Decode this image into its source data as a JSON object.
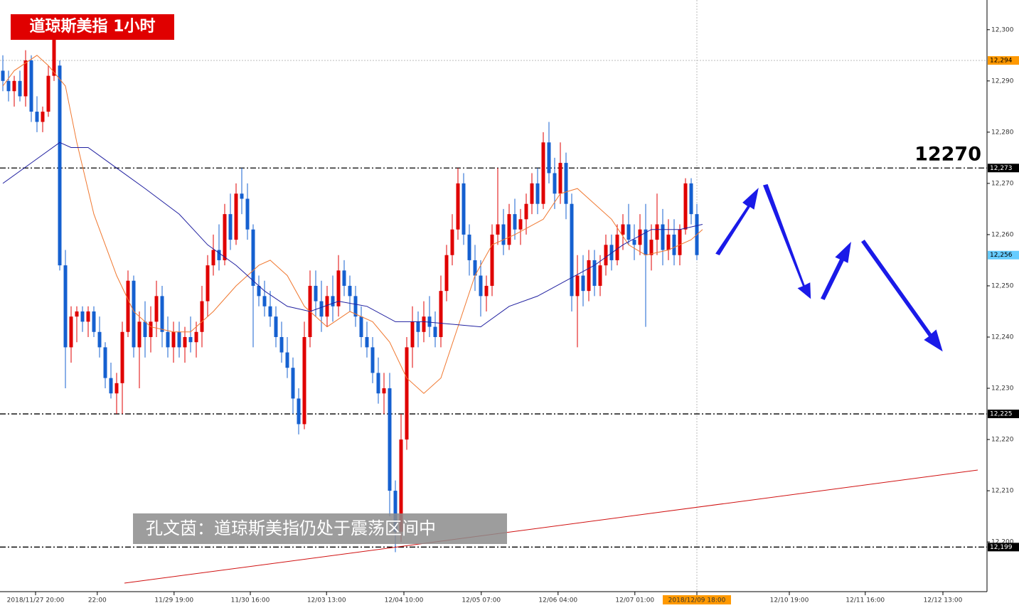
{
  "chart_data": {
    "type": "candlestick",
    "title": "道琼斯美指 1小时",
    "annotations": [
      "12270",
      "孔文茵：道琼斯美指仍处于震荡区间中"
    ],
    "up_color": "#e00000",
    "down_color": "#1560d0",
    "series": [
      {
        "values": [
          [
            12292,
            12295,
            12288,
            12290
          ],
          [
            12290,
            12292,
            12286,
            12288
          ],
          [
            12288,
            12291,
            12285,
            12290
          ],
          [
            12290,
            12292,
            12286,
            12287
          ],
          [
            12287,
            12296,
            12285,
            12294
          ],
          [
            12294,
            12295,
            12282,
            12284
          ],
          [
            12284,
            12287,
            12280,
            12282
          ],
          [
            12282,
            12285,
            12280,
            12284
          ],
          [
            12284,
            12293,
            12283,
            12291
          ],
          [
            12291,
            12302,
            12290,
            12300
          ],
          [
            12293,
            12294,
            12253,
            12254
          ],
          [
            12254,
            12257,
            12230,
            12238
          ],
          [
            12238,
            12246,
            12235,
            12244
          ],
          [
            12244,
            12246,
            12239,
            12245
          ],
          [
            12245,
            12246,
            12241,
            12243
          ],
          [
            12243,
            12246,
            12240,
            12245
          ],
          [
            12245,
            12246,
            12240,
            12241
          ],
          [
            12241,
            12244,
            12236,
            12238
          ],
          [
            12238,
            12239,
            12230,
            12232
          ],
          [
            12232,
            12235,
            12228,
            12229
          ],
          [
            12229,
            12233,
            12225,
            12231
          ],
          [
            12231,
            12243,
            12225,
            12241
          ],
          [
            12241,
            12253,
            12240,
            12251
          ],
          [
            12251,
            12252,
            12236,
            12238
          ],
          [
            12238,
            12245,
            12230,
            12243
          ],
          [
            12243,
            12247,
            12236,
            12240
          ],
          [
            12240,
            12246,
            12237,
            12243
          ],
          [
            12243,
            12251,
            12240,
            12248
          ],
          [
            12248,
            12250,
            12238,
            12241
          ],
          [
            12241,
            12244,
            12236,
            12238
          ],
          [
            12238,
            12243,
            12235,
            12241
          ],
          [
            12241,
            12243,
            12236,
            12238
          ],
          [
            12238,
            12242,
            12235,
            12240
          ],
          [
            12240,
            12244,
            12237,
            12239
          ],
          [
            12239,
            12243,
            12236,
            12241
          ],
          [
            12241,
            12250,
            12238,
            12247
          ],
          [
            12247,
            12256,
            12244,
            12254
          ],
          [
            12254,
            12260,
            12252,
            12257
          ],
          [
            12257,
            12262,
            12253,
            12255
          ],
          [
            12255,
            12266,
            12254,
            12264
          ],
          [
            12264,
            12268,
            12257,
            12259
          ],
          [
            12259,
            12270,
            12258,
            12268
          ],
          [
            12268,
            12273,
            12264,
            12267
          ],
          [
            12267,
            12270,
            12259,
            12261
          ],
          [
            12261,
            12262,
            12238,
            12250
          ],
          [
            12250,
            12252,
            12246,
            12248
          ],
          [
            12248,
            12251,
            12244,
            12246
          ],
          [
            12246,
            12249,
            12242,
            12244
          ],
          [
            12244,
            12246,
            12238,
            12240
          ],
          [
            12240,
            12243,
            12235,
            12237
          ],
          [
            12237,
            12240,
            12232,
            12234
          ],
          [
            12234,
            12236,
            12225,
            12228
          ],
          [
            12228,
            12230,
            12221,
            12223
          ],
          [
            12223,
            12243,
            12222,
            12240
          ],
          [
            12240,
            12253,
            12238,
            12250
          ],
          [
            12250,
            12253,
            12244,
            12247
          ],
          [
            12247,
            12251,
            12241,
            12244
          ],
          [
            12244,
            12250,
            12242,
            12248
          ],
          [
            12248,
            12252,
            12243,
            12246
          ],
          [
            12246,
            12256,
            12244,
            12253
          ],
          [
            12253,
            12255,
            12248,
            12250
          ],
          [
            12250,
            12252,
            12245,
            12248
          ],
          [
            12248,
            12250,
            12242,
            12244
          ],
          [
            12244,
            12246,
            12238,
            12240
          ],
          [
            12240,
            12243,
            12236,
            12238
          ],
          [
            12238,
            12240,
            12231,
            12233
          ],
          [
            12233,
            12236,
            12227,
            12229
          ],
          [
            12229,
            12233,
            12225,
            12230
          ],
          [
            12230,
            12233,
            12205,
            12210
          ],
          [
            12210,
            12212,
            12198,
            12202
          ],
          [
            12202,
            12225,
            12200,
            12220
          ],
          [
            12220,
            12240,
            12218,
            12238
          ],
          [
            12238,
            12246,
            12234,
            12243
          ],
          [
            12243,
            12245,
            12238,
            12241
          ],
          [
            12241,
            12247,
            12239,
            12244
          ],
          [
            12244,
            12248,
            12240,
            12242
          ],
          [
            12242,
            12245,
            12238,
            12240
          ],
          [
            12240,
            12252,
            12238,
            12249
          ],
          [
            12249,
            12258,
            12247,
            12256
          ],
          [
            12256,
            12264,
            12254,
            12261
          ],
          [
            12261,
            12273,
            12259,
            12270
          ],
          [
            12270,
            12272,
            12258,
            12260
          ],
          [
            12260,
            12262,
            12252,
            12255
          ],
          [
            12255,
            12258,
            12249,
            12252
          ],
          [
            12252,
            12255,
            12244,
            12248
          ],
          [
            12248,
            12252,
            12245,
            12250
          ],
          [
            12250,
            12262,
            12248,
            12260
          ],
          [
            12260,
            12273,
            12258,
            12262
          ],
          [
            12262,
            12265,
            12256,
            12258
          ],
          [
            12258,
            12266,
            12257,
            12264
          ],
          [
            12264,
            12267,
            12259,
            12261
          ],
          [
            12261,
            12265,
            12258,
            12263
          ],
          [
            12263,
            12268,
            12260,
            12266
          ],
          [
            12266,
            12272,
            12264,
            12270
          ],
          [
            12270,
            12273,
            12264,
            12266
          ],
          [
            12266,
            12280,
            12265,
            12278
          ],
          [
            12278,
            12282,
            12270,
            12272
          ],
          [
            12272,
            12275,
            12265,
            12268
          ],
          [
            12268,
            12278,
            12266,
            12274
          ],
          [
            12274,
            12276,
            12263,
            12266
          ],
          [
            12266,
            12268,
            12245,
            12248
          ],
          [
            12248,
            12256,
            12238,
            12252
          ],
          [
            12252,
            12256,
            12246,
            12249
          ],
          [
            12249,
            12257,
            12247,
            12255
          ],
          [
            12255,
            12257,
            12248,
            12250
          ],
          [
            12250,
            12256,
            12248,
            12254
          ],
          [
            12254,
            12260,
            12252,
            12258
          ],
          [
            12258,
            12260,
            12253,
            12255
          ],
          [
            12255,
            12262,
            12254,
            12260
          ],
          [
            12260,
            12264,
            12257,
            12262
          ],
          [
            12262,
            12266,
            12258,
            12259
          ],
          [
            12259,
            12262,
            12255,
            12258
          ],
          [
            12258,
            12264,
            12256,
            12261
          ],
          [
            12261,
            12266,
            12242,
            12256
          ],
          [
            12256,
            12262,
            12253,
            12259
          ],
          [
            12259,
            12268,
            12256,
            12262
          ],
          [
            12262,
            12265,
            12254,
            12257
          ],
          [
            12257,
            12263,
            12255,
            12260
          ],
          [
            12260,
            12263,
            12254,
            12256
          ],
          [
            12256,
            12262,
            12254,
            12261
          ],
          [
            12261,
            12271,
            12260,
            12270
          ],
          [
            12270,
            12271,
            12262,
            12264
          ],
          [
            12264,
            12266,
            12255,
            12256
          ]
        ]
      }
    ],
    "lines": [
      {
        "color": "#f07830",
        "x": [
          0,
          2,
          6,
          8,
          11,
          13,
          16,
          20,
          23,
          26,
          30,
          33,
          37,
          41,
          45,
          47,
          50,
          53,
          57,
          61,
          65,
          68,
          71,
          74,
          77,
          80,
          83,
          86,
          90,
          95,
          98,
          101,
          103,
          107,
          110,
          113,
          117,
          121,
          123
        ],
        "values": [
          12289,
          12292,
          12295,
          12293,
          12289,
          12278,
          12264,
          12252,
          12245,
          12242,
          12241,
          12241,
          12245,
          12250,
          12254,
          12255,
          12252,
          12246,
          12242,
          12245,
          12243,
          12239,
          12232,
          12229,
          12232,
          12242,
          12252,
          12258,
          12260,
          12263,
          12268,
          12269,
          12267,
          12263,
          12258,
          12256,
          12257,
          12259,
          12261
        ]
      },
      {
        "color": "#2020a0",
        "x": [
          0,
          5,
          10,
          12,
          15,
          20,
          25,
          31,
          36,
          41,
          46,
          50,
          54,
          59,
          64,
          69,
          74,
          84,
          89,
          94,
          99,
          104,
          109,
          114,
          119,
          123
        ],
        "values": [
          12270,
          12274,
          12278,
          12277,
          12277,
          12273,
          12269,
          12264,
          12258,
          12254,
          12249,
          12246,
          12245,
          12247,
          12246,
          12243,
          12243,
          12242,
          12246,
          12248,
          12251,
          12254,
          12258,
          12261,
          12261,
          12262
        ]
      }
    ],
    "price_labels": [
      {
        "value": 12294,
        "label": "12,294",
        "color": "#ff9900",
        "line": "dotted"
      },
      {
        "value": 12273,
        "label": "12,273",
        "color": "#000000",
        "line": "dashdot"
      },
      {
        "value": 12256,
        "label": "12,256",
        "color": "#66ccff",
        "line": "none"
      },
      {
        "value": 12225,
        "label": "12,225",
        "color": "#000000",
        "line": "dashdot"
      },
      {
        "value": 12199,
        "label": "12,199",
        "color": "#000000",
        "line": "dashdot"
      }
    ],
    "xlim": [
      -0.5,
      173
    ],
    "ylim": [
      12190.3,
      12305.8
    ],
    "yticks": [
      {
        "value": 12200,
        "label": "12,200"
      },
      {
        "value": 12210,
        "label": "12,210"
      },
      {
        "value": 12220,
        "label": "12,220"
      },
      {
        "value": 12230,
        "label": "12,230"
      },
      {
        "value": 12240,
        "label": "12,240"
      },
      {
        "value": 12250,
        "label": "12,250"
      },
      {
        "value": 12260,
        "label": "12,260"
      },
      {
        "value": 12270,
        "label": "12,270"
      },
      {
        "value": 12280,
        "label": "12,280"
      },
      {
        "value": 12290,
        "label": "12,290"
      },
      {
        "value": 12300,
        "label": "12,300"
      }
    ],
    "xticks": [
      {
        "value": 5.75,
        "label": "2018/11/27 20:00"
      },
      {
        "value": 16.6,
        "label": "22:00"
      },
      {
        "value": 30.1,
        "label": "11/29 19:00"
      },
      {
        "value": 43.5,
        "label": "11/30 16:00"
      },
      {
        "value": 56.9,
        "label": "12/03 13:00"
      },
      {
        "value": 70.5,
        "label": "12/04 10:00"
      },
      {
        "value": 84.1,
        "label": "12/05 07:00"
      },
      {
        "value": 97.6,
        "label": "12/06 04:00"
      },
      {
        "value": 111.1,
        "label": "12/07 01:00"
      },
      {
        "value": 122,
        "label": "2018/12/09 18:00"
      },
      {
        "value": 138.25,
        "label": "12/10 19:00"
      },
      {
        "value": 151.6,
        "label": "12/11 16:00"
      },
      {
        "value": 165.25,
        "label": "12/12 13:00"
      }
    ],
    "highlight_xtick": 9
  }
}
